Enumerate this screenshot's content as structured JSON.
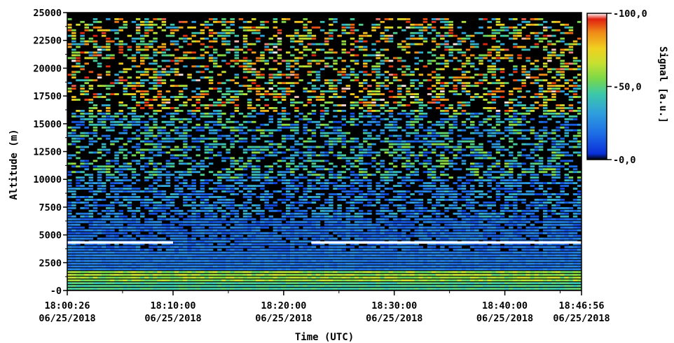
{
  "chart_data": {
    "type": "heatmap",
    "title": "",
    "xlabel": "Time (UTC)",
    "ylabel": "Altitude (m)",
    "colorbar_label": "Signal [a.u.]",
    "colorbar_ticks": [
      "100,0",
      "50,0",
      "0,0"
    ],
    "colorbar_range": [
      0,
      100
    ],
    "colormap": [
      "#000000",
      "#0a2fd8",
      "#1e6ee6",
      "#2fa0dc",
      "#3cc8a8",
      "#78d84a",
      "#c8e030",
      "#f0d020",
      "#f08a18",
      "#e02010",
      "#ffffff"
    ],
    "x_ticks": [
      {
        "time": "18:00:26",
        "date": "06/25/2018",
        "t": 0
      },
      {
        "time": "18:10:00",
        "date": "06/25/2018",
        "t": 574
      },
      {
        "time": "18:20:00",
        "date": "06/25/2018",
        "t": 1174
      },
      {
        "time": "18:30:00",
        "date": "06/25/2018",
        "t": 1774
      },
      {
        "time": "18:40:00",
        "date": "06/25/2018",
        "t": 2374
      },
      {
        "time": "18:46:56",
        "date": "06/25/2018",
        "t": 2790
      }
    ],
    "xlim": [
      "18:00:26",
      "18:46:56"
    ],
    "y_ticks": [
      "0",
      "2500",
      "5000",
      "7500",
      "10000",
      "12500",
      "15000",
      "17500",
      "20000",
      "22500",
      "25000"
    ],
    "ylim": [
      0,
      25000
    ],
    "features": [
      {
        "name": "boundary layer",
        "altitude_range": [
          0,
          3500
        ],
        "signal_level": "high (40-65)"
      },
      {
        "name": "cloud layer",
        "altitude": 4300,
        "time_range": [
          "18:00:26",
          "18:10:00"
        ],
        "signal_level": "saturated"
      },
      {
        "name": "cloud layer",
        "altitude": 4300,
        "time_range": [
          "18:22:30",
          "18:46:56"
        ],
        "signal_level": "saturated"
      }
    ]
  }
}
